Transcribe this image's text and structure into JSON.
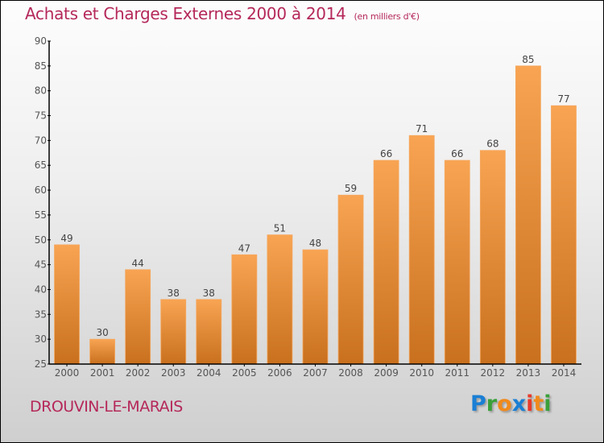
{
  "title": "Achats et Charges Externes 2000 à 2014",
  "title_unit": "(en milliers d'€)",
  "commune": "DROUVIN-LE-MARAIS",
  "logo": {
    "letters": [
      {
        "char": "P",
        "color": "#1a7fd4"
      },
      {
        "char": "r",
        "color": "#3aa03a"
      },
      {
        "char": "o",
        "color": "#f08a1c"
      },
      {
        "char": "x",
        "color": "#1a7fd4"
      },
      {
        "char": "i",
        "color": "#e83a2a"
      },
      {
        "char": "t",
        "color": "#f08a1c"
      },
      {
        "char": "i",
        "color": "#3aa03a"
      }
    ]
  },
  "colors": {
    "title": "#b5285a",
    "bar_top": "#f8a452",
    "bar_bottom": "#c8701e"
  },
  "chart_data": {
    "type": "bar",
    "title": "Achats et Charges Externes 2000 à 2014 (en milliers d'€)",
    "xlabel": "",
    "ylabel": "",
    "categories": [
      "2000",
      "2001",
      "2002",
      "2003",
      "2004",
      "2005",
      "2006",
      "2007",
      "2008",
      "2009",
      "2010",
      "2011",
      "2012",
      "2013",
      "2014"
    ],
    "values": [
      49,
      30,
      44,
      38,
      38,
      47,
      51,
      48,
      59,
      66,
      71,
      66,
      68,
      85,
      77
    ],
    "ylim": [
      25,
      90
    ],
    "yticks": [
      25,
      30,
      35,
      40,
      45,
      50,
      55,
      60,
      65,
      70,
      75,
      80,
      85,
      90
    ],
    "grid": false,
    "legend": "none",
    "data_labels": true
  }
}
